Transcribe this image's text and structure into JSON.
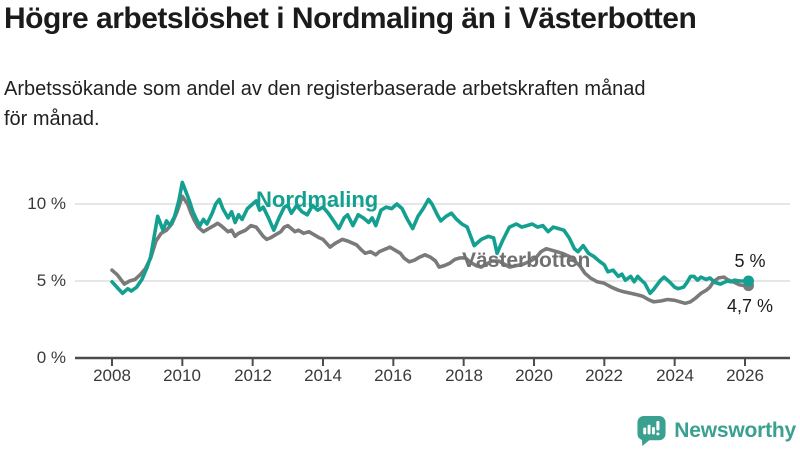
{
  "header": {
    "title": "Högre arbetslöshet i Nordmaling än i Västerbotten",
    "subtitle_line1": "Arbetssökande som andel av den registerbaserade arbetskraften månad",
    "subtitle_line2": "för månad."
  },
  "branding": {
    "name": "Newsworthy",
    "color": "#3aa08f",
    "icon": "speech-bubble-bar-chart-icon"
  },
  "colors": {
    "nordmaling_teal": "#14a090",
    "vasterbotten_gray": "#7a7a7a",
    "gridline": "#d8d8d8",
    "axis": "#4c4c4c"
  },
  "chart_data": {
    "type": "line",
    "title": "Högre arbetslöshet i Nordmaling än i Västerbotten",
    "subtitle": "Arbetssökande som andel av den registerbaserade arbetskraften månad för månad.",
    "xlabel": "",
    "ylabel": "",
    "x_domain": [
      2008,
      2026.17
    ],
    "ylim": [
      0,
      12
    ],
    "grid": "horizontal",
    "gridlines_pct": [
      5,
      10
    ],
    "y_ticks": [
      "10 %",
      "5 %",
      "0 %"
    ],
    "y_tick_values": [
      10,
      5,
      0
    ],
    "x_ticks": [
      "2008",
      "2010",
      "2012",
      "2014",
      "2016",
      "2018",
      "2020",
      "2022",
      "2024",
      "2026"
    ],
    "legend_position": "inline-labels-on-lines",
    "series": [
      {
        "name": "Nordmaling",
        "color": "#14a090",
        "end_label": "5 %",
        "end_value": 5.0,
        "points": [
          [
            2008.0,
            4.95
          ],
          [
            2008.1,
            4.7
          ],
          [
            2008.2,
            4.45
          ],
          [
            2008.3,
            4.2
          ],
          [
            2008.45,
            4.5
          ],
          [
            2008.55,
            4.35
          ],
          [
            2008.7,
            4.6
          ],
          [
            2008.85,
            5.1
          ],
          [
            2009.0,
            5.9
          ],
          [
            2009.1,
            6.6
          ],
          [
            2009.2,
            7.9
          ],
          [
            2009.3,
            9.2
          ],
          [
            2009.45,
            8.3
          ],
          [
            2009.55,
            8.9
          ],
          [
            2009.65,
            8.6
          ],
          [
            2009.78,
            9.2
          ],
          [
            2009.9,
            10.2
          ],
          [
            2010.0,
            11.4
          ],
          [
            2010.1,
            10.8
          ],
          [
            2010.2,
            10.2
          ],
          [
            2010.3,
            9.5
          ],
          [
            2010.4,
            9.0
          ],
          [
            2010.5,
            8.6
          ],
          [
            2010.6,
            9.0
          ],
          [
            2010.7,
            8.7
          ],
          [
            2010.85,
            9.4
          ],
          [
            2010.95,
            10.0
          ],
          [
            2011.05,
            10.3
          ],
          [
            2011.15,
            9.7
          ],
          [
            2011.3,
            9.1
          ],
          [
            2011.4,
            9.5
          ],
          [
            2011.5,
            8.8
          ],
          [
            2011.6,
            9.3
          ],
          [
            2011.7,
            9.0
          ],
          [
            2011.85,
            9.7
          ],
          [
            2011.95,
            9.9
          ],
          [
            2012.1,
            10.2
          ],
          [
            2012.2,
            9.6
          ],
          [
            2012.3,
            9.8
          ],
          [
            2012.45,
            9.1
          ],
          [
            2012.6,
            8.3
          ],
          [
            2012.75,
            9.1
          ],
          [
            2012.9,
            9.8
          ],
          [
            2013.0,
            9.9
          ],
          [
            2013.1,
            9.4
          ],
          [
            2013.25,
            9.9
          ],
          [
            2013.4,
            9.5
          ],
          [
            2013.55,
            9.3
          ],
          [
            2013.7,
            9.9
          ],
          [
            2013.85,
            9.6
          ],
          [
            2014.0,
            9.8
          ],
          [
            2014.15,
            9.4
          ],
          [
            2014.3,
            8.9
          ],
          [
            2014.45,
            8.4
          ],
          [
            2014.6,
            9.1
          ],
          [
            2014.7,
            9.3
          ],
          [
            2014.85,
            8.6
          ],
          [
            2015.0,
            9.3
          ],
          [
            2015.15,
            9.1
          ],
          [
            2015.3,
            8.8
          ],
          [
            2015.4,
            9.1
          ],
          [
            2015.5,
            8.6
          ],
          [
            2015.65,
            9.6
          ],
          [
            2015.8,
            9.8
          ],
          [
            2015.95,
            9.7
          ],
          [
            2016.1,
            10.0
          ],
          [
            2016.25,
            9.7
          ],
          [
            2016.4,
            9.0
          ],
          [
            2016.55,
            8.4
          ],
          [
            2016.7,
            9.2
          ],
          [
            2016.85,
            9.7
          ],
          [
            2017.0,
            10.3
          ],
          [
            2017.1,
            10.0
          ],
          [
            2017.25,
            9.3
          ],
          [
            2017.35,
            8.9
          ],
          [
            2017.5,
            9.2
          ],
          [
            2017.65,
            9.4
          ],
          [
            2017.8,
            9.0
          ],
          [
            2017.95,
            8.7
          ],
          [
            2018.1,
            8.5
          ],
          [
            2018.3,
            7.3
          ],
          [
            2018.5,
            7.7
          ],
          [
            2018.7,
            7.9
          ],
          [
            2018.85,
            7.8
          ],
          [
            2018.95,
            6.8
          ],
          [
            2019.1,
            7.6
          ],
          [
            2019.3,
            8.5
          ],
          [
            2019.5,
            8.7
          ],
          [
            2019.65,
            8.5
          ],
          [
            2019.8,
            8.6
          ],
          [
            2019.95,
            8.7
          ],
          [
            2020.1,
            8.5
          ],
          [
            2020.25,
            8.6
          ],
          [
            2020.4,
            8.2
          ],
          [
            2020.55,
            8.5
          ],
          [
            2020.7,
            8.4
          ],
          [
            2020.85,
            8.3
          ],
          [
            2021.0,
            7.8
          ],
          [
            2021.15,
            7.1
          ],
          [
            2021.25,
            6.9
          ],
          [
            2021.4,
            7.3
          ],
          [
            2021.55,
            6.8
          ],
          [
            2021.7,
            6.6
          ],
          [
            2021.85,
            6.3
          ],
          [
            2022.0,
            6.05
          ],
          [
            2022.1,
            5.6
          ],
          [
            2022.25,
            5.7
          ],
          [
            2022.4,
            5.3
          ],
          [
            2022.5,
            5.45
          ],
          [
            2022.6,
            5.05
          ],
          [
            2022.75,
            5.3
          ],
          [
            2022.85,
            4.95
          ],
          [
            2022.95,
            5.3
          ],
          [
            2023.05,
            5.05
          ],
          [
            2023.15,
            4.85
          ],
          [
            2023.3,
            4.2
          ],
          [
            2023.4,
            4.45
          ],
          [
            2023.5,
            4.75
          ],
          [
            2023.6,
            5.05
          ],
          [
            2023.7,
            5.25
          ],
          [
            2023.85,
            4.95
          ],
          [
            2024.0,
            4.6
          ],
          [
            2024.1,
            4.5
          ],
          [
            2024.25,
            4.6
          ],
          [
            2024.35,
            4.9
          ],
          [
            2024.45,
            5.3
          ],
          [
            2024.55,
            5.3
          ],
          [
            2024.65,
            5.05
          ],
          [
            2024.75,
            5.25
          ],
          [
            2024.9,
            5.1
          ],
          [
            2025.0,
            5.2
          ],
          [
            2025.15,
            4.9
          ],
          [
            2025.3,
            4.8
          ],
          [
            2025.4,
            4.9
          ],
          [
            2025.5,
            5.0
          ],
          [
            2025.6,
            4.95
          ],
          [
            2025.7,
            5.05
          ],
          [
            2025.85,
            5.0
          ],
          [
            2026.0,
            5.0
          ],
          [
            2026.1,
            5.0
          ]
        ]
      },
      {
        "name": "Västerbotten",
        "color": "#7a7a7a",
        "end_label": "4,7 %",
        "end_value": 4.7,
        "points": [
          [
            2008.0,
            5.7
          ],
          [
            2008.15,
            5.4
          ],
          [
            2008.35,
            4.8
          ],
          [
            2008.5,
            5.0
          ],
          [
            2008.65,
            5.1
          ],
          [
            2008.8,
            5.4
          ],
          [
            2008.95,
            5.8
          ],
          [
            2009.1,
            6.5
          ],
          [
            2009.25,
            7.6
          ],
          [
            2009.4,
            8.1
          ],
          [
            2009.55,
            8.3
          ],
          [
            2009.7,
            8.7
          ],
          [
            2009.85,
            9.5
          ],
          [
            2010.0,
            10.5
          ],
          [
            2010.15,
            10.0
          ],
          [
            2010.25,
            9.4
          ],
          [
            2010.35,
            8.9
          ],
          [
            2010.45,
            8.5
          ],
          [
            2010.6,
            8.2
          ],
          [
            2010.75,
            8.4
          ],
          [
            2010.9,
            8.6
          ],
          [
            2011.0,
            8.75
          ],
          [
            2011.1,
            8.6
          ],
          [
            2011.3,
            8.2
          ],
          [
            2011.4,
            8.3
          ],
          [
            2011.5,
            7.9
          ],
          [
            2011.6,
            8.1
          ],
          [
            2011.8,
            8.3
          ],
          [
            2011.95,
            8.6
          ],
          [
            2012.1,
            8.5
          ],
          [
            2012.3,
            7.9
          ],
          [
            2012.4,
            7.7
          ],
          [
            2012.5,
            7.8
          ],
          [
            2012.65,
            8.0
          ],
          [
            2012.8,
            8.2
          ],
          [
            2012.9,
            8.5
          ],
          [
            2013.0,
            8.6
          ],
          [
            2013.1,
            8.4
          ],
          [
            2013.2,
            8.2
          ],
          [
            2013.3,
            8.3
          ],
          [
            2013.45,
            8.1
          ],
          [
            2013.6,
            8.2
          ],
          [
            2013.75,
            8.0
          ],
          [
            2013.9,
            7.8
          ],
          [
            2014.0,
            7.7
          ],
          [
            2014.2,
            7.2
          ],
          [
            2014.35,
            7.45
          ],
          [
            2014.55,
            7.7
          ],
          [
            2014.7,
            7.6
          ],
          [
            2014.85,
            7.45
          ],
          [
            2014.95,
            7.35
          ],
          [
            2015.1,
            7.0
          ],
          [
            2015.2,
            6.8
          ],
          [
            2015.35,
            6.9
          ],
          [
            2015.5,
            6.7
          ],
          [
            2015.6,
            6.9
          ],
          [
            2015.8,
            7.1
          ],
          [
            2015.9,
            7.2
          ],
          [
            2016.05,
            7.0
          ],
          [
            2016.2,
            6.8
          ],
          [
            2016.3,
            6.5
          ],
          [
            2016.45,
            6.25
          ],
          [
            2016.6,
            6.35
          ],
          [
            2016.75,
            6.55
          ],
          [
            2016.9,
            6.7
          ],
          [
            2017.05,
            6.55
          ],
          [
            2017.2,
            6.3
          ],
          [
            2017.3,
            5.9
          ],
          [
            2017.45,
            6.0
          ],
          [
            2017.6,
            6.15
          ],
          [
            2017.75,
            6.4
          ],
          [
            2017.9,
            6.5
          ],
          [
            2018.05,
            6.5
          ],
          [
            2018.2,
            6.2
          ],
          [
            2018.35,
            6.0
          ],
          [
            2018.5,
            5.9
          ],
          [
            2018.65,
            6.1
          ],
          [
            2018.8,
            6.3
          ],
          [
            2019.0,
            6.3
          ],
          [
            2019.15,
            6.1
          ],
          [
            2019.3,
            5.9
          ],
          [
            2019.5,
            6.0
          ],
          [
            2019.7,
            6.1
          ],
          [
            2019.9,
            6.3
          ],
          [
            2020.05,
            6.5
          ],
          [
            2020.2,
            6.9
          ],
          [
            2020.35,
            7.1
          ],
          [
            2020.5,
            7.0
          ],
          [
            2020.65,
            6.9
          ],
          [
            2020.8,
            6.8
          ],
          [
            2021.0,
            6.6
          ],
          [
            2021.15,
            6.3
          ],
          [
            2021.3,
            6.0
          ],
          [
            2021.45,
            5.5
          ],
          [
            2021.6,
            5.2
          ],
          [
            2021.8,
            4.95
          ],
          [
            2022.0,
            4.85
          ],
          [
            2022.2,
            4.6
          ],
          [
            2022.4,
            4.4
          ],
          [
            2022.55,
            4.3
          ],
          [
            2022.75,
            4.2
          ],
          [
            2022.95,
            4.1
          ],
          [
            2023.1,
            4.0
          ],
          [
            2023.25,
            3.8
          ],
          [
            2023.4,
            3.65
          ],
          [
            2023.6,
            3.7
          ],
          [
            2023.8,
            3.8
          ],
          [
            2024.0,
            3.75
          ],
          [
            2024.15,
            3.65
          ],
          [
            2024.3,
            3.55
          ],
          [
            2024.45,
            3.65
          ],
          [
            2024.6,
            3.9
          ],
          [
            2024.75,
            4.2
          ],
          [
            2024.9,
            4.4
          ],
          [
            2025.0,
            4.6
          ],
          [
            2025.1,
            4.95
          ],
          [
            2025.25,
            5.2
          ],
          [
            2025.4,
            5.25
          ],
          [
            2025.5,
            5.1
          ],
          [
            2025.7,
            4.9
          ],
          [
            2025.85,
            4.75
          ],
          [
            2026.0,
            4.7
          ],
          [
            2026.1,
            4.7
          ]
        ]
      }
    ]
  }
}
